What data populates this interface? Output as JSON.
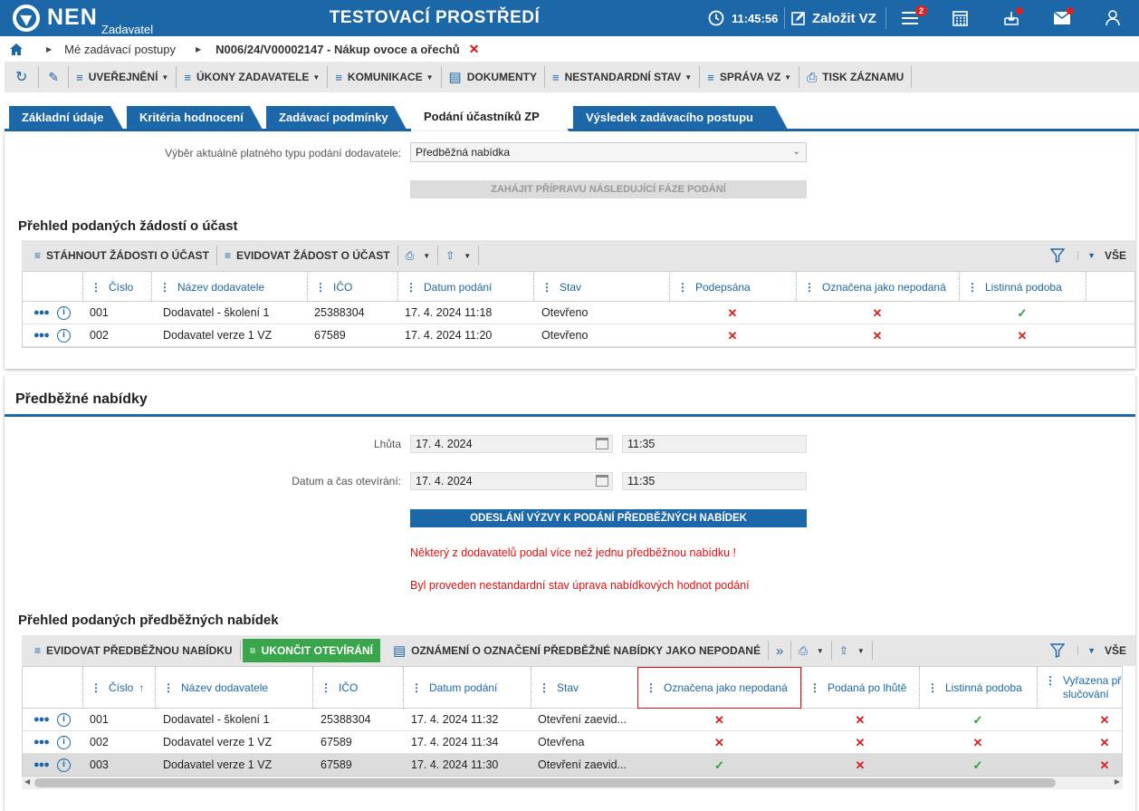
{
  "header": {
    "logo_text": "NEN",
    "logo_sub": "Zadavatel",
    "environment": "TESTOVACÍ PROSTŘEDÍ",
    "clock": "11:45:56",
    "create_label": "Založit VZ",
    "menu_badge": "2"
  },
  "breadcrumb": {
    "item1": "Mé zadávací postupy",
    "item2": "N006/24/V00002147 - Nákup ovoce a ořechů"
  },
  "toolbar": {
    "uverejneni": "UVEŘEJNĚNÍ",
    "ukony": "ÚKONY ZADAVATELE",
    "komunikace": "KOMUNIKACE",
    "dokumenty": "DOKUMENTY",
    "nestandardni": "NESTANDARDNÍ STAV",
    "sprava": "SPRÁVA VZ",
    "tisk": "TISK ZÁZNAMU"
  },
  "tabs": [
    {
      "label": "Základní údaje"
    },
    {
      "label": "Kritéria hodnocení"
    },
    {
      "label": "Zadávací podmínky"
    },
    {
      "label": "Podání účastníků ZP"
    },
    {
      "label": "Výsledek zadávacího postupu"
    }
  ],
  "submission_type": {
    "label": "Výběr aktuálně platného typu podání dodavatele:",
    "value": "Předběžná nabídka",
    "start_button": "ZAHÁJIT PŘÍPRAVU NÁSLEDUJÍCÍ FÁZE PODÁNÍ"
  },
  "requests": {
    "title": "Přehled podaných žádostí o účast",
    "tool_download": "STÁHNOUT ŽÁDOSTI O ÚČAST",
    "tool_register": "EVIDOVAT ŽÁDOST O ÚČAST",
    "all_label": "VŠE",
    "columns": [
      "Číslo",
      "Název dodavatele",
      "IČO",
      "Datum podání",
      "Stav",
      "Podepsána",
      "Označena jako nepodaná",
      "Listinná podoba"
    ],
    "rows": [
      {
        "cislo": "001",
        "nazev": "Dodavatel - školení 1",
        "ico": "25388304",
        "datum": "17. 4. 2024 11:18",
        "stav": "Otevřeno",
        "podepsana": "✕",
        "nepodana": "✕",
        "listinna": "✓"
      },
      {
        "cislo": "002",
        "nazev": "Dodavatel verze 1 VZ",
        "ico": "67589",
        "datum": "17. 4. 2024 11:20",
        "stav": "Otevřeno",
        "podepsana": "✕",
        "nepodana": "✕",
        "listinna": "✕"
      }
    ]
  },
  "prelim": {
    "title": "Předběžné nabídky",
    "deadline_label": "Lhůta",
    "deadline_date": "17. 4. 2024",
    "deadline_time": "11:35",
    "opening_label": "Datum a čas otevírání:",
    "opening_date": "17. 4. 2024",
    "opening_time": "11:35",
    "send_button": "ODESLÁNÍ VÝZVY K PODÁNÍ PŘEDBĚŽNÝCH NABÍDEK",
    "warning1": "Některý z dodavatelů podal více než jednu předběžnou nabídku !",
    "warning2": "Byl proveden nestandardní stav úprava nabídkových hodnot podání"
  },
  "offers": {
    "title": "Přehled podaných předběžných nabídek",
    "tool_register": "EVIDOVAT PŘEDBĚŽNOU NABÍDKU",
    "tool_finish": "UKONČIT OTEVÍRÁNÍ",
    "tool_notice": "OZNÁMENÍ O OZNAČENÍ PŘEDBĚŽNÉ NABÍDKY JAKO NEPODANÉ",
    "all_label": "VŠE",
    "columns": [
      "Číslo",
      "Název dodavatele",
      "IČO",
      "Datum podání",
      "Stav",
      "Označena jako nepodaná",
      "Podaná po lhůtě",
      "Listinná podoba",
      "Vyřazena při slučování"
    ],
    "rows": [
      {
        "cislo": "001",
        "nazev": "Dodavatel - školení 1",
        "ico": "25388304",
        "datum": "17. 4. 2024 11:32",
        "stav": "Otevření zaevid...",
        "nepodana": "✕",
        "polhute": "✕",
        "listinna": "✓",
        "vyrazena": "✕"
      },
      {
        "cislo": "002",
        "nazev": "Dodavatel verze 1 VZ",
        "ico": "67589",
        "datum": "17. 4. 2024 11:34",
        "stav": "Otevřena",
        "nepodana": "✕",
        "polhute": "✕",
        "listinna": "✕",
        "vyrazena": "✕"
      },
      {
        "cislo": "003",
        "nazev": "Dodavatel verze 1 VZ",
        "ico": "67589",
        "datum": "17. 4. 2024 11:30",
        "stav": "Otevření zaevid...",
        "nepodana": "✓",
        "polhute": "✕",
        "listinna": "✓",
        "vyrazena": "✕"
      }
    ]
  },
  "colors": {
    "brand": "#1b67a8",
    "green": "#3aa64c",
    "error": "#e01010"
  }
}
